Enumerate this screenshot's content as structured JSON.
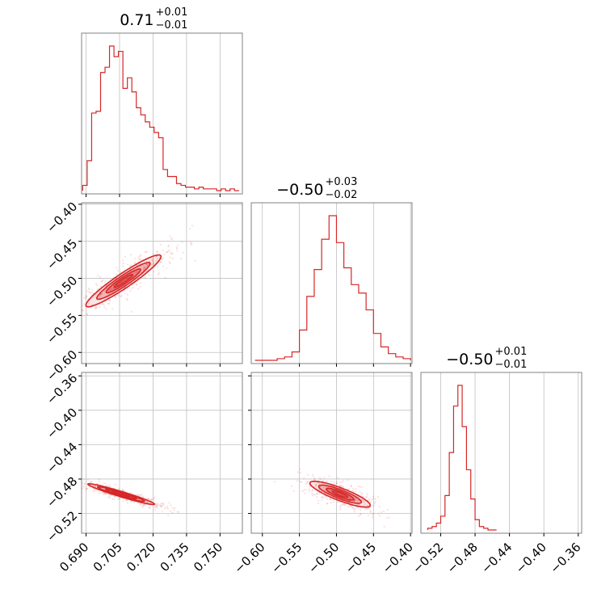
{
  "chart_data": {
    "type": "corner",
    "color": "#d62728",
    "parameters": [
      {
        "range": [
          0.688,
          0.76
        ],
        "ticks": [
          0.69,
          0.705,
          0.72,
          0.735,
          0.75
        ],
        "tick_labels": [
          "0.690",
          "0.705",
          "0.720",
          "0.735",
          "0.750"
        ],
        "title_main": "0.71",
        "title_plus": "+0.01",
        "title_minus": "−0.01"
      },
      {
        "range": [
          -0.615,
          -0.398
        ],
        "ticks": [
          -0.6,
          -0.55,
          -0.5,
          -0.45,
          -0.4
        ],
        "tick_labels": [
          "−0.60",
          "−0.55",
          "−0.50",
          "−0.45",
          "−0.40"
        ],
        "title_main": "−0.50",
        "title_plus": "+0.03",
        "title_minus": "−0.02"
      },
      {
        "range": [
          -0.543,
          -0.356
        ],
        "ticks": [
          -0.52,
          -0.48,
          -0.44,
          -0.4,
          -0.36
        ],
        "tick_labels": [
          "−0.52",
          "−0.48",
          "−0.44",
          "−0.40",
          "−0.36"
        ],
        "title_main": "−0.50",
        "title_plus": "+0.01",
        "title_minus": "−0.01"
      }
    ],
    "histograms": [
      {
        "x": [
          0.6895,
          0.6915,
          0.6935,
          0.6955,
          0.6975,
          0.6995,
          0.7015,
          0.7035,
          0.7055,
          0.7075,
          0.7095,
          0.7115,
          0.7135,
          0.7155,
          0.7175,
          0.7195,
          0.7215,
          0.7235,
          0.7255,
          0.7275,
          0.7295,
          0.7315,
          0.7335,
          0.7355,
          0.7375,
          0.7395,
          0.7415,
          0.7435,
          0.7455,
          0.7475,
          0.7495,
          0.7515,
          0.7535,
          0.7555,
          0.7575
        ],
        "counts": [
          3,
          17,
          44,
          45,
          67,
          70,
          82,
          76,
          79,
          58,
          64,
          56,
          47,
          43,
          39,
          36,
          33,
          30,
          12,
          8,
          8,
          4,
          3,
          2,
          2,
          1,
          2,
          1,
          1,
          1,
          0,
          1,
          0,
          1,
          0
        ]
      },
      {
        "x": [
          -0.605,
          -0.595,
          -0.585,
          -0.575,
          -0.565,
          -0.555,
          -0.545,
          -0.535,
          -0.525,
          -0.515,
          -0.505,
          -0.495,
          -0.485,
          -0.475,
          -0.465,
          -0.455,
          -0.445,
          -0.435,
          -0.425,
          -0.415,
          -0.405
        ],
        "counts": [
          0,
          0,
          0,
          1,
          2,
          5,
          18,
          38,
          54,
          72,
          86,
          70,
          55,
          45,
          40,
          30,
          16,
          8,
          4,
          2,
          1
        ]
      },
      {
        "x": [
          -0.5325,
          -0.5275,
          -0.5225,
          -0.5175,
          -0.5125,
          -0.5075,
          -0.5025,
          -0.4975,
          -0.4925,
          -0.4875,
          -0.4825,
          -0.4775,
          -0.4725,
          -0.4675,
          -0.4625,
          -0.4575
        ],
        "counts": [
          1,
          2,
          4,
          8,
          20,
          45,
          72,
          84,
          60,
          35,
          18,
          6,
          2,
          1,
          0,
          0
        ]
      }
    ],
    "scatter_panels": [
      {
        "x_param": 0,
        "y_param": 1,
        "center": [
          0.706,
          -0.505
        ],
        "along": [
          0.0245,
          0.053
        ],
        "across": [
          -0.0028,
          0.0013
        ]
      },
      {
        "x_param": 0,
        "y_param": 2,
        "center": [
          0.705,
          -0.497
        ],
        "along": [
          0.0225,
          -0.018
        ],
        "across": [
          0.0008,
          0.0013
        ]
      },
      {
        "x_param": 1,
        "y_param": 2,
        "center": [
          -0.497,
          -0.497
        ],
        "along": [
          0.061,
          -0.021
        ],
        "across": [
          0.0035,
          0.0035
        ]
      }
    ],
    "grid": true
  }
}
